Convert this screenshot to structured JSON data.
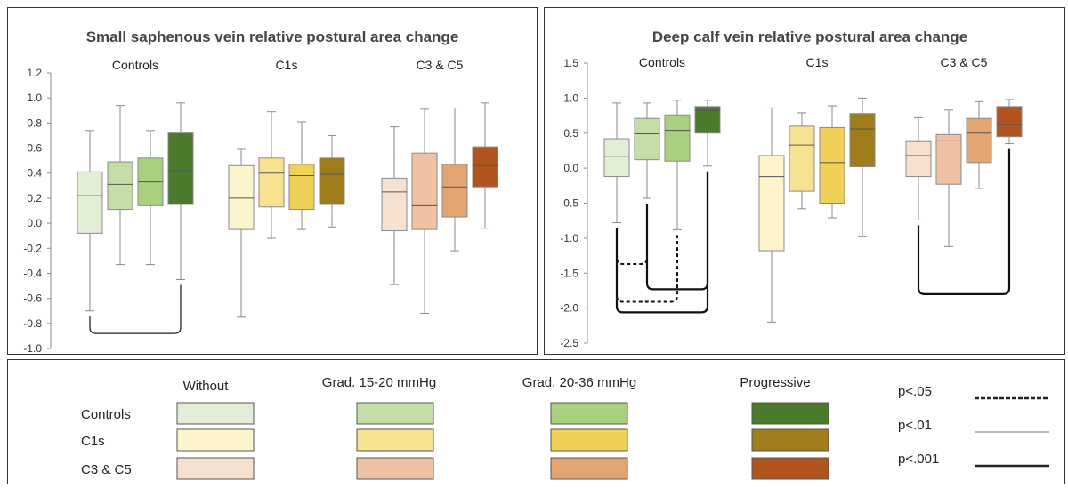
{
  "charts": [
    {
      "type": "box",
      "title": "Small saphenous vein relative postural area change",
      "ylim": [
        -1.0,
        1.2
      ],
      "ytick_labels": [
        "-1.0",
        "-0.8",
        "-0.6",
        "-0.4",
        "-0.2",
        "0.0",
        "0.2",
        "0.4",
        "0.6",
        "0.8",
        "1.0",
        "1.2"
      ],
      "yticks": [
        -1.0,
        -0.8,
        -0.6,
        -0.4,
        -0.2,
        0.0,
        0.2,
        0.4,
        0.6,
        0.8,
        1.0,
        1.2
      ],
      "groups": [
        {
          "name": "Controls",
          "boxes": [
            {
              "series": "Without",
              "min": -0.7,
              "q1": -0.08,
              "median": 0.22,
              "q3": 0.41,
              "max": 0.74
            },
            {
              "series": "Grad. 15-20 mmHg",
              "min": -0.33,
              "q1": 0.11,
              "median": 0.31,
              "q3": 0.49,
              "max": 0.94
            },
            {
              "series": "Grad. 20-36 mmHg",
              "min": -0.33,
              "q1": 0.14,
              "median": 0.33,
              "q3": 0.52,
              "max": 0.74
            },
            {
              "series": "Progressive",
              "min": -0.45,
              "q1": 0.15,
              "median": 0.42,
              "q3": 0.72,
              "max": 0.96
            }
          ]
        },
        {
          "name": "C1s",
          "boxes": [
            {
              "series": "Without",
              "min": -0.75,
              "q1": -0.05,
              "median": 0.2,
              "q3": 0.46,
              "max": 0.59
            },
            {
              "series": "Grad. 15-20 mmHg",
              "min": -0.12,
              "q1": 0.13,
              "median": 0.4,
              "q3": 0.52,
              "max": 0.89
            },
            {
              "series": "Grad. 20-36 mmHg",
              "min": -0.05,
              "q1": 0.11,
              "median": 0.38,
              "q3": 0.47,
              "max": 0.81
            },
            {
              "series": "Progressive",
              "min": -0.03,
              "q1": 0.15,
              "median": 0.39,
              "q3": 0.52,
              "max": 0.7
            }
          ]
        },
        {
          "name": "C3 & C5",
          "boxes": [
            {
              "series": "Without",
              "min": -0.49,
              "q1": -0.06,
              "median": 0.25,
              "q3": 0.36,
              "max": 0.77
            },
            {
              "series": "Grad. 15-20 mmHg",
              "min": -0.72,
              "q1": -0.05,
              "median": 0.14,
              "q3": 0.56,
              "max": 0.91
            },
            {
              "series": "Grad. 20-36 mmHg",
              "min": -0.22,
              "q1": 0.05,
              "median": 0.29,
              "q3": 0.47,
              "max": 0.92
            },
            {
              "series": "Progressive",
              "min": -0.04,
              "q1": 0.29,
              "median": 0.46,
              "q3": 0.61,
              "max": 0.96
            }
          ]
        }
      ],
      "significance": [
        {
          "group": "Controls",
          "from": "Without",
          "to": "Progressive",
          "p": "p<.01",
          "level": -0.88
        }
      ]
    },
    {
      "type": "box",
      "title": "Deep calf vein relative postural area change",
      "ylim": [
        -2.5,
        1.5
      ],
      "ytick_labels": [
        "-2.5",
        "-2.0",
        "-1.5",
        "-1.0",
        "-0.5",
        "0.0",
        "0.5",
        "1.0",
        "1.5"
      ],
      "yticks": [
        -2.5,
        -2.0,
        -1.5,
        -1.0,
        -0.5,
        0.0,
        0.5,
        1.0,
        1.5
      ],
      "groups": [
        {
          "name": "Controls",
          "boxes": [
            {
              "series": "Without",
              "min": -0.78,
              "q1": -0.12,
              "median": 0.17,
              "q3": 0.42,
              "max": 0.93
            },
            {
              "series": "Grad. 15-20 mmHg",
              "min": -0.43,
              "q1": 0.12,
              "median": 0.49,
              "q3": 0.71,
              "max": 0.93
            },
            {
              "series": "Grad. 20-36 mmHg",
              "min": -0.88,
              "q1": 0.1,
              "median": 0.54,
              "q3": 0.76,
              "max": 0.97
            },
            {
              "series": "Progressive",
              "min": 0.03,
              "q1": 0.5,
              "median": 0.82,
              "q3": 0.88,
              "max": 0.97
            }
          ]
        },
        {
          "name": "C1s",
          "boxes": [
            {
              "series": "Without",
              "min": -2.2,
              "q1": -1.18,
              "median": -0.12,
              "q3": 0.18,
              "max": 0.86
            },
            {
              "series": "Grad. 15-20 mmHg",
              "min": -0.58,
              "q1": -0.33,
              "median": 0.33,
              "q3": 0.6,
              "max": 0.79
            },
            {
              "series": "Grad. 20-36 mmHg",
              "min": -0.71,
              "q1": -0.5,
              "median": 0.08,
              "q3": 0.58,
              "max": 0.89
            },
            {
              "series": "Progressive",
              "min": -0.98,
              "q1": 0.02,
              "median": 0.56,
              "q3": 0.78,
              "max": 1.0
            }
          ]
        },
        {
          "name": "C3 & C5",
          "boxes": [
            {
              "series": "Without",
              "min": -0.74,
              "q1": -0.12,
              "median": 0.18,
              "q3": 0.38,
              "max": 0.72
            },
            {
              "series": "Grad. 15-20 mmHg",
              "min": -1.12,
              "q1": -0.23,
              "median": 0.4,
              "q3": 0.48,
              "max": 0.83
            },
            {
              "series": "Grad. 20-36 mmHg",
              "min": -0.29,
              "q1": 0.08,
              "median": 0.5,
              "q3": 0.71,
              "max": 0.95
            },
            {
              "series": "Progressive",
              "min": 0.35,
              "q1": 0.45,
              "median": 0.62,
              "q3": 0.88,
              "max": 0.98
            }
          ]
        }
      ],
      "significance": [
        {
          "group": "Controls",
          "from": "Without",
          "to": "Grad. 15-20 mmHg",
          "p": "p<.05",
          "level": -1.37
        },
        {
          "group": "Controls",
          "from": "Without",
          "to": "Grad. 20-36 mmHg",
          "p": "p<.05",
          "level": -1.91
        },
        {
          "group": "Controls",
          "from": "Grad. 15-20 mmHg",
          "to": "Progressive",
          "p": "p<.001",
          "level": -1.73
        },
        {
          "group": "Controls",
          "from": "Without",
          "to": "Progressive",
          "p": "p<.001",
          "level": -2.06
        },
        {
          "group": "C3 & C5",
          "from": "Without",
          "to": "Progressive",
          "p": "p<.001",
          "level": -1.8
        }
      ]
    }
  ],
  "legend": {
    "series": [
      "Without",
      "Grad. 15-20 mmHg",
      "Grad. 20-36 mmHg",
      "Progressive"
    ],
    "groups": [
      "Controls",
      "C1s",
      "C3 & C5"
    ],
    "colors": {
      "Controls": [
        "#e2eed6",
        "#c4dea8",
        "#a8d07f",
        "#4a7b2c"
      ],
      "C1s": [
        "#fdf4cc",
        "#f8e292",
        "#efd158",
        "#9e7d1a"
      ],
      "C3 & C5": [
        "#f6e1d1",
        "#eec2a2",
        "#e2a571",
        "#b2541e"
      ]
    },
    "significance": [
      {
        "label": "p<.05",
        "style": "dashed"
      },
      {
        "label": "p<.01",
        "style": "thin"
      },
      {
        "label": "p<.001",
        "style": "thick"
      }
    ]
  }
}
